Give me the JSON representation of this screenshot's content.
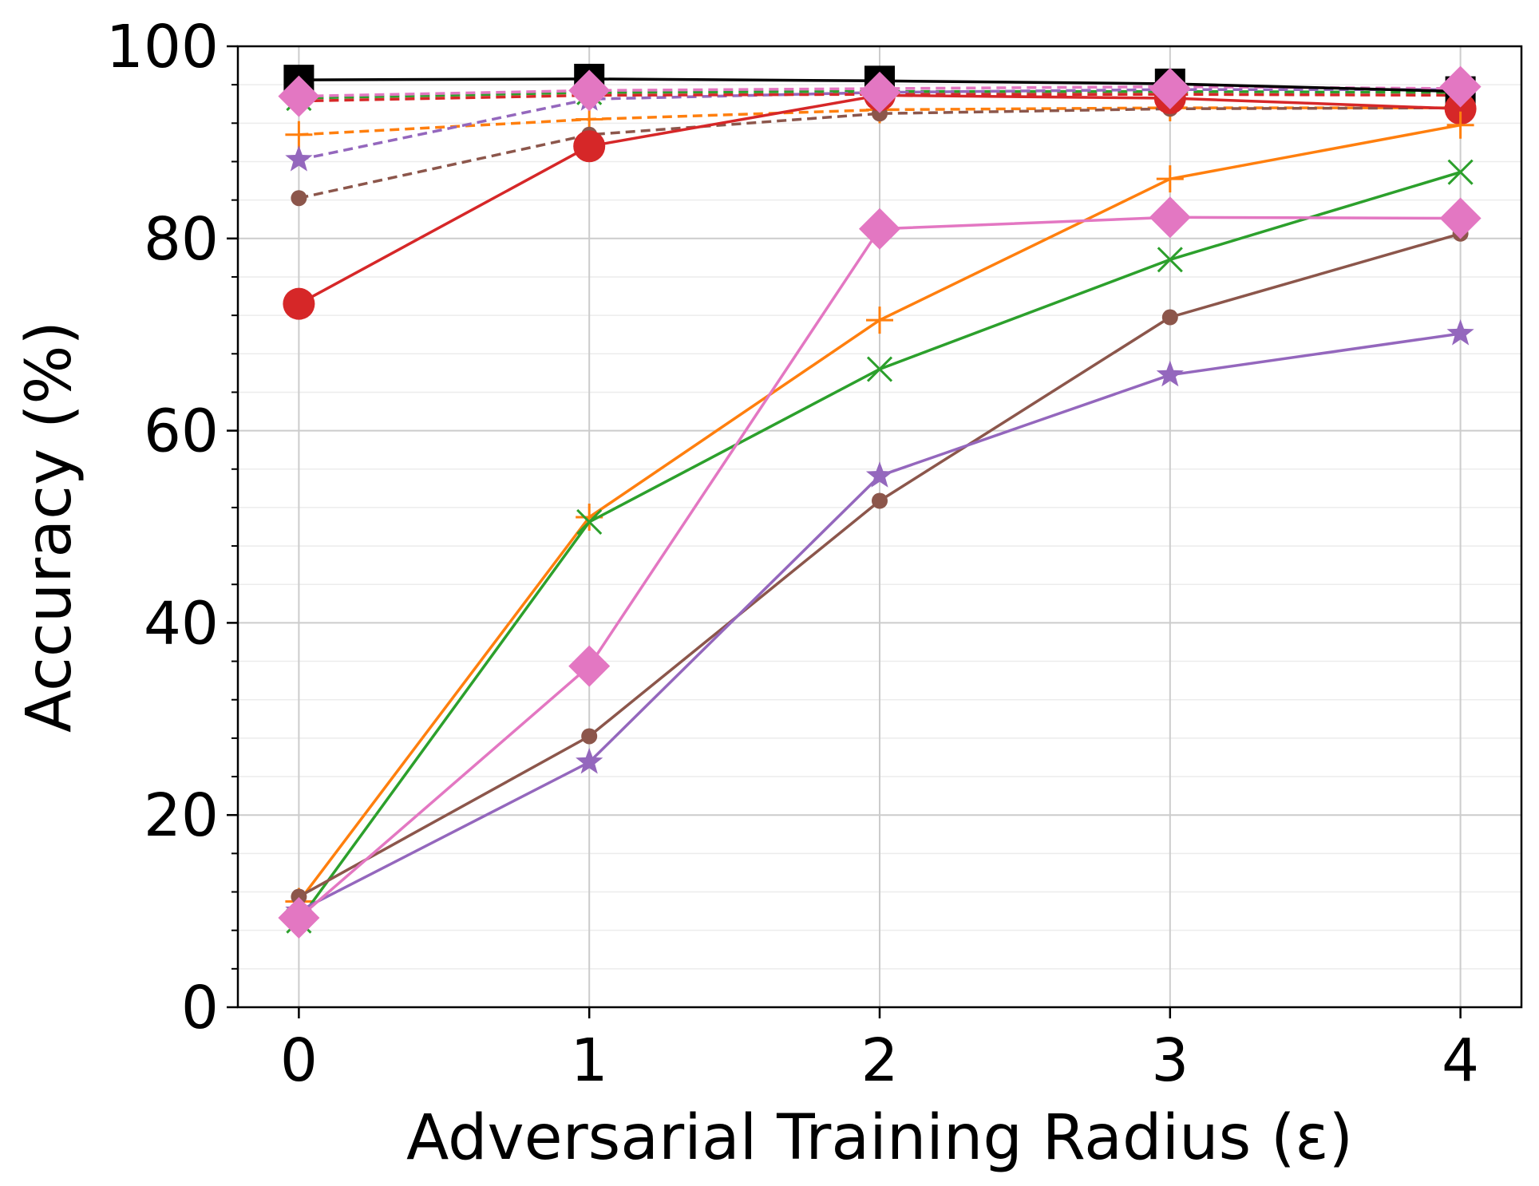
{
  "chart_data": {
    "type": "line",
    "xlabel": "Adversarial Training Radius (ε)",
    "ylabel": "Accuracy (%)",
    "x": [
      0,
      1,
      2,
      3,
      4
    ],
    "xlim": [
      -0.21,
      4.21
    ],
    "ylim": [
      0,
      100
    ],
    "xticks": [
      "0",
      "1",
      "2",
      "3",
      "4"
    ],
    "yticks": [
      "0",
      "20",
      "40",
      "60",
      "80",
      "100"
    ],
    "grid": true,
    "legend": "none",
    "series": [
      {
        "color": "#ff7f0e",
        "marker": "plus",
        "linestyle": "dashed",
        "values": [
          90.8,
          92.4,
          93.4,
          93.6,
          93.6
        ]
      },
      {
        "color": "#2ca02c",
        "marker": "x",
        "linestyle": "dashed",
        "values": [
          94.6,
          95.2,
          95.3,
          95.3,
          95.2
        ]
      },
      {
        "color": "#8c564b",
        "marker": "circle",
        "linestyle": "dashed",
        "values": [
          84.2,
          90.8,
          93.0,
          93.5,
          93.6
        ]
      },
      {
        "color": "#9467bd",
        "marker": "star",
        "linestyle": "dashed",
        "values": [
          88.2,
          94.5,
          95.2,
          95.5,
          95.5
        ]
      },
      {
        "color": "#e377c2",
        "marker": "none",
        "linestyle": "dashed",
        "values": [
          94.8,
          95.4,
          95.6,
          95.8,
          95.6
        ]
      },
      {
        "color": "#d62728",
        "marker": "none",
        "linestyle": "dashed",
        "values": [
          94.3,
          94.9,
          95.0,
          95.0,
          94.9
        ]
      },
      {
        "color": "#000000",
        "marker": "square",
        "linestyle": "solid",
        "values": [
          96.5,
          96.6,
          96.4,
          96.1,
          95.3
        ]
      },
      {
        "color": "#d62728",
        "marker": "circle-large",
        "linestyle": "solid",
        "values": [
          73.2,
          89.6,
          94.9,
          94.6,
          93.5
        ]
      },
      {
        "color": "#ff7f0e",
        "marker": "plus",
        "linestyle": "solid",
        "values": [
          11.0,
          51.0,
          71.5,
          86.2,
          91.8
        ]
      },
      {
        "color": "#2ca02c",
        "marker": "x",
        "linestyle": "solid",
        "values": [
          9.0,
          50.5,
          66.4,
          77.8,
          86.9
        ]
      },
      {
        "color": "#8c564b",
        "marker": "circle",
        "linestyle": "solid",
        "values": [
          11.5,
          28.2,
          52.7,
          71.8,
          80.5
        ]
      },
      {
        "color": "#9467bd",
        "marker": "star",
        "linestyle": "solid",
        "values": [
          10.0,
          25.5,
          55.3,
          65.8,
          70.1
        ]
      },
      {
        "color": "#e377c2",
        "marker": "diamond",
        "linestyle": "solid",
        "values": [
          9.3,
          35.5,
          81.0,
          82.2,
          82.1
        ]
      },
      {
        "color": "#e377c2",
        "marker": "diamond",
        "linestyle": "none",
        "values": [
          94.8,
          95.4,
          95.2,
          95.6,
          95.8
        ]
      }
    ]
  }
}
